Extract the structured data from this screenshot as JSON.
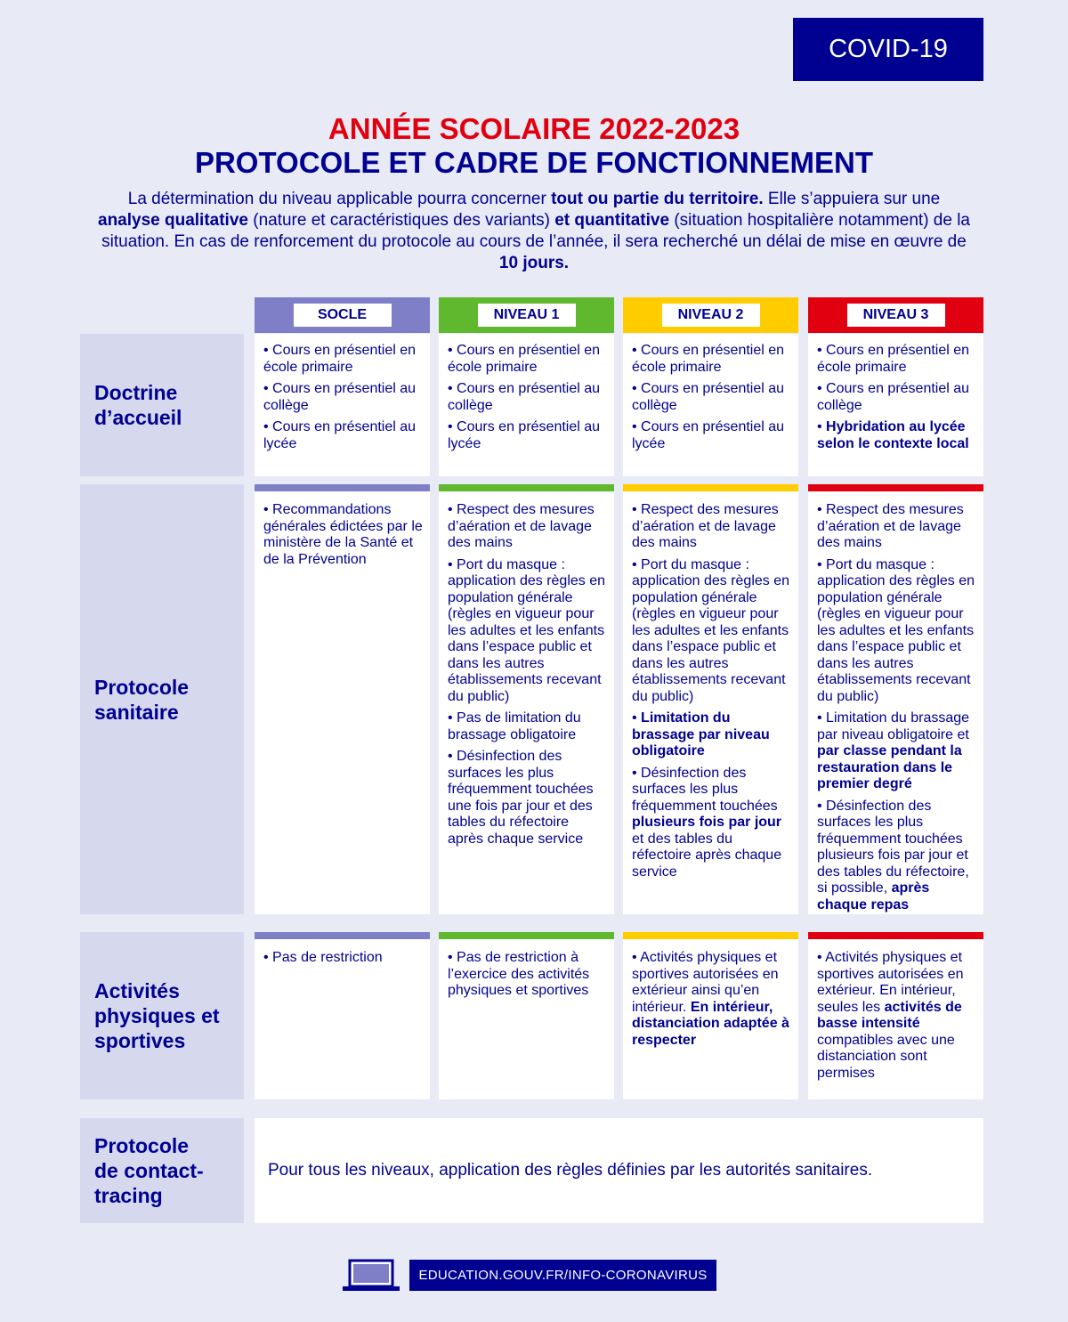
{
  "badge": "COVID-19",
  "header": {
    "title_line1": "ANNÉE SCOLAIRE 2022-2023",
    "title_line2": "PROTOCOLE ET CADRE DE FONCTIONNEMENT",
    "intro": [
      {
        "text": "La détermination du niveau applicable pourra concerner "
      },
      {
        "text": "tout ou partie du territoire.",
        "bold": true
      },
      {
        "text": " Elle s’appuiera sur une "
      },
      {
        "text": "analyse qualitative",
        "bold": true
      },
      {
        "text": " (nature et caractéristiques des variants) "
      },
      {
        "text": "et quantitative",
        "bold": true
      },
      {
        "text": " (situation hospitalière notamment) de la situation. En cas de renforcement du protocole au cours de l’année, il sera recherché un délai de mise en œuvre de "
      },
      {
        "text": "10 jours.",
        "bold": true
      }
    ]
  },
  "levels": [
    {
      "name": "SOCLE",
      "color": "#7f7fc8"
    },
    {
      "name": "NIVEAU 1",
      "color": "#5fb82e"
    },
    {
      "name": "NIVEAU 2",
      "color": "#ffcc00"
    },
    {
      "name": "NIVEAU 3",
      "color": "#e1000f"
    }
  ],
  "rows": [
    {
      "label": "Doctrine d’accueil",
      "cells": [
        [
          [
            {
              "text": "Cours en présentiel en école primaire"
            }
          ],
          [
            {
              "text": "Cours en présentiel au collège"
            }
          ],
          [
            {
              "text": "Cours en présentiel au lycée"
            }
          ]
        ],
        [
          [
            {
              "text": "Cours en présentiel en école primaire"
            }
          ],
          [
            {
              "text": "Cours en présentiel au collège"
            }
          ],
          [
            {
              "text": "Cours en présentiel au lycée"
            }
          ]
        ],
        [
          [
            {
              "text": "Cours en présentiel en école primaire"
            }
          ],
          [
            {
              "text": "Cours en présentiel au collège"
            }
          ],
          [
            {
              "text": "Cours en présentiel au lycée"
            }
          ]
        ],
        [
          [
            {
              "text": "Cours en présentiel en école primaire"
            }
          ],
          [
            {
              "text": "Cours en présentiel au collège"
            }
          ],
          [
            {
              "text": "Hybridation au lycée selon le contexte local",
              "bold": true
            }
          ]
        ]
      ]
    },
    {
      "label": "Protocole sanitaire",
      "cells": [
        [
          [
            {
              "text": "Recommandations générales édictées par le ministère de la Santé et de la Prévention"
            }
          ]
        ],
        [
          [
            {
              "text": "Respect des mesures d’aération et de lavage des mains"
            }
          ],
          [
            {
              "text": "Port du masque : application des règles en population générale (règles en vigueur pour les adultes et les enfants dans l’espace public et dans les autres établissements recevant du public)"
            }
          ],
          [
            {
              "text": "Pas de limitation du brassage obligatoire"
            }
          ],
          [
            {
              "text": "Désinfection des surfaces les plus fréquemment touchées une fois par jour et des tables du réfectoire après chaque service"
            }
          ]
        ],
        [
          [
            {
              "text": "Respect des mesures d’aération et de lavage des mains"
            }
          ],
          [
            {
              "text": "Port du masque : application des règles en population générale (règles en vigueur pour les adultes et les enfants dans l’espace public et dans les autres établissements recevant du public)"
            }
          ],
          [
            {
              "text": "Limitation du brassage par niveau obligatoire",
              "bold": true
            }
          ],
          [
            {
              "text": "Désinfection des surfaces les plus fréquemment touchées "
            },
            {
              "text": "plusieurs fois par jour",
              "bold": true
            },
            {
              "text": " et des tables du réfectoire après chaque service"
            }
          ]
        ],
        [
          [
            {
              "text": "Respect des mesures d’aération et de lavage des mains"
            }
          ],
          [
            {
              "text": "Port du masque : application des règles en population générale (règles en vigueur pour les adultes et les enfants dans l’espace public et dans les autres établissements recevant du public)"
            }
          ],
          [
            {
              "text": "Limitation du brassage par niveau obligatoire et "
            },
            {
              "text": "par classe pendant la restauration dans le premier degré",
              "bold": true
            }
          ],
          [
            {
              "text": "Désinfection des surfaces les plus fréquemment touchées plusieurs fois par jour et des tables du réfectoire, si possible, "
            },
            {
              "text": "après chaque repas",
              "bold": true
            }
          ]
        ]
      ]
    },
    {
      "label": "Activités physiques et sportives",
      "cells": [
        [
          [
            {
              "text": "Pas de restriction"
            }
          ]
        ],
        [
          [
            {
              "text": "Pas de restriction à l’exercice des activités physiques et sportives"
            }
          ]
        ],
        [
          [
            {
              "text": "Activités physiques et sportives autorisées en extérieur ainsi qu’en intérieur. "
            },
            {
              "text": "En intérieur, distanciation adaptée à respecter",
              "bold": true
            }
          ]
        ],
        [
          [
            {
              "text": "Activités physiques et sportives autorisées en extérieur. En intérieur, seules les "
            },
            {
              "text": "activités de basse intensité",
              "bold": true
            },
            {
              "text": " compatibles avec une distanciation sont permises"
            }
          ]
        ]
      ]
    }
  ],
  "contact_tracing": {
    "label": "Protocole de contact-tracing",
    "text": "Pour tous les niveaux, application des règles définies par les autorités sanitaires."
  },
  "footer": {
    "url": "EDUCATION.GOUV.FR/INFO-CORONAVIRUS"
  }
}
